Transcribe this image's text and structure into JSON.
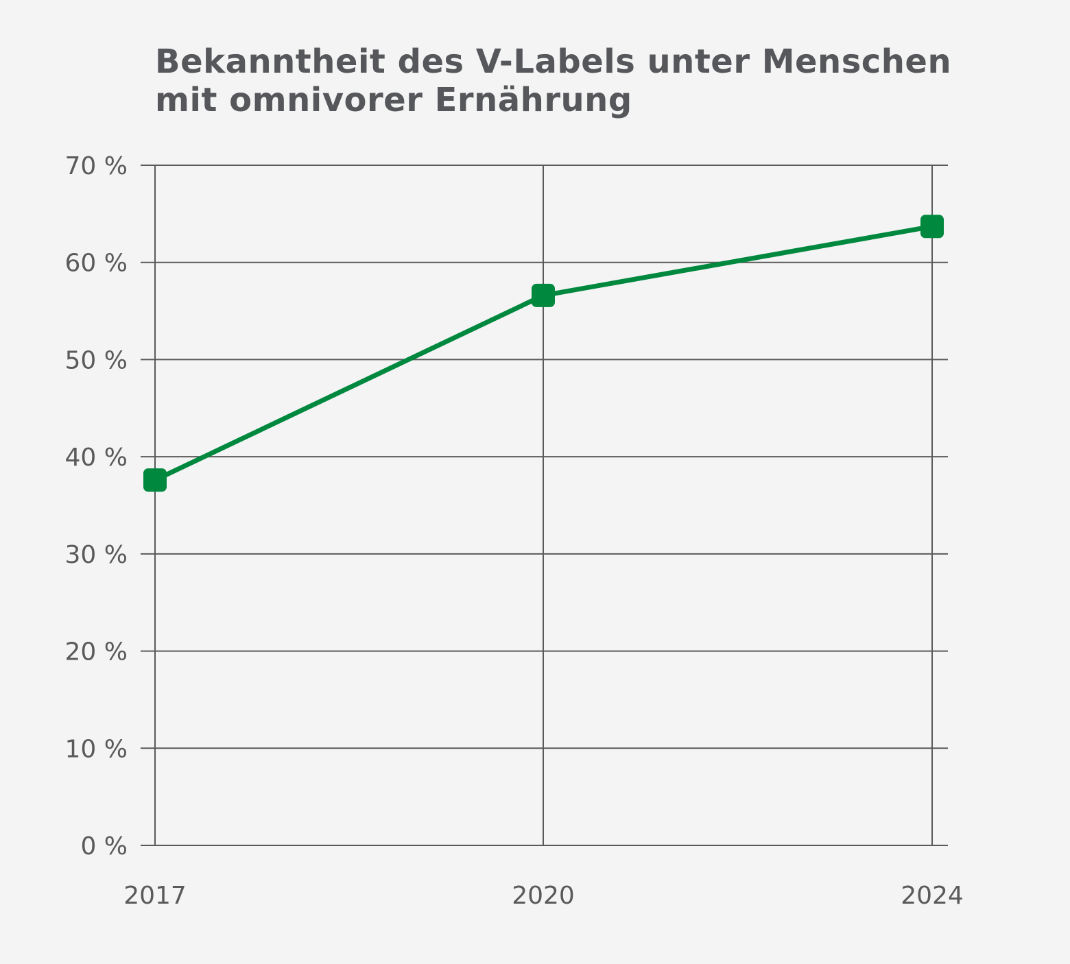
{
  "chart_data": {
    "type": "line",
    "title_lines": [
      "Bekanntheit des V-Labels unter Menschen",
      "mit omnivorer Ernährung"
    ],
    "categories": [
      "2017",
      "2020",
      "2024"
    ],
    "series": [
      {
        "values": [
          37.6,
          56.6,
          63.7
        ]
      }
    ],
    "yticks": [
      "0 %",
      "10 %",
      "20 %",
      "30 %",
      "40 %",
      "50 %",
      "60 %",
      "70 %"
    ],
    "ylim": [
      0,
      70
    ],
    "grid": true,
    "line_color": "#00883f",
    "grid_color": "#5a5a5a"
  }
}
